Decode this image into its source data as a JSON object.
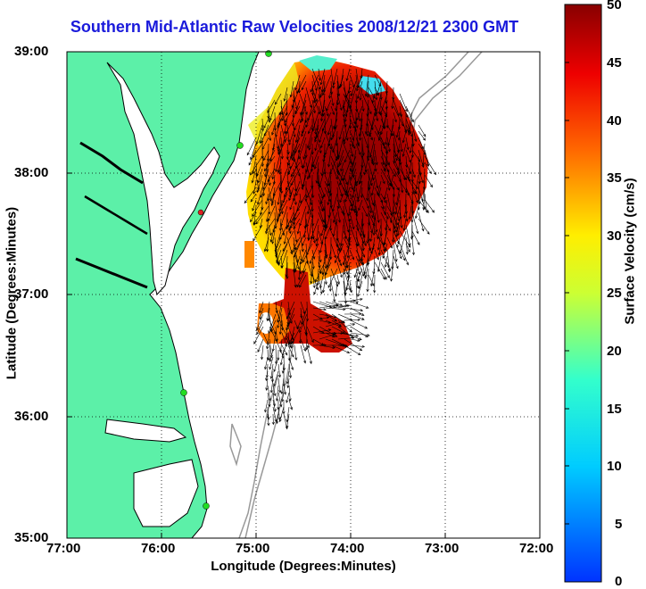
{
  "map": {
    "title": "Southern Mid-Atlantic Raw Velocities 2008/12/21 2300 GMT",
    "xlabel": "Longitude (Degrees:Minutes)",
    "ylabel": "Latitude (Degrees:Minutes)",
    "x_ticks": [
      "77:00",
      "76:00",
      "75:00",
      "74:00",
      "73:00",
      "72:00"
    ],
    "y_ticks": [
      "39:00",
      "38:00",
      "37:00",
      "36:00",
      "35:00"
    ],
    "lon_range": [
      -77,
      -72
    ],
    "lat_range": [
      35,
      39
    ],
    "grid": "dotted",
    "land_color": "#5cf0a8",
    "coastline_color": "#000000",
    "bathymetry_color": "#999999",
    "station_color": "#22dd22",
    "station_highlight_color": "#dd2222"
  },
  "colorbar": {
    "label": "Surface Velocity (cm/s)",
    "ticks": [
      "50",
      "45",
      "40",
      "35",
      "30",
      "25",
      "20",
      "15",
      "10",
      "5",
      "0"
    ],
    "range": [
      0,
      50
    ],
    "colormap": "jet"
  }
}
